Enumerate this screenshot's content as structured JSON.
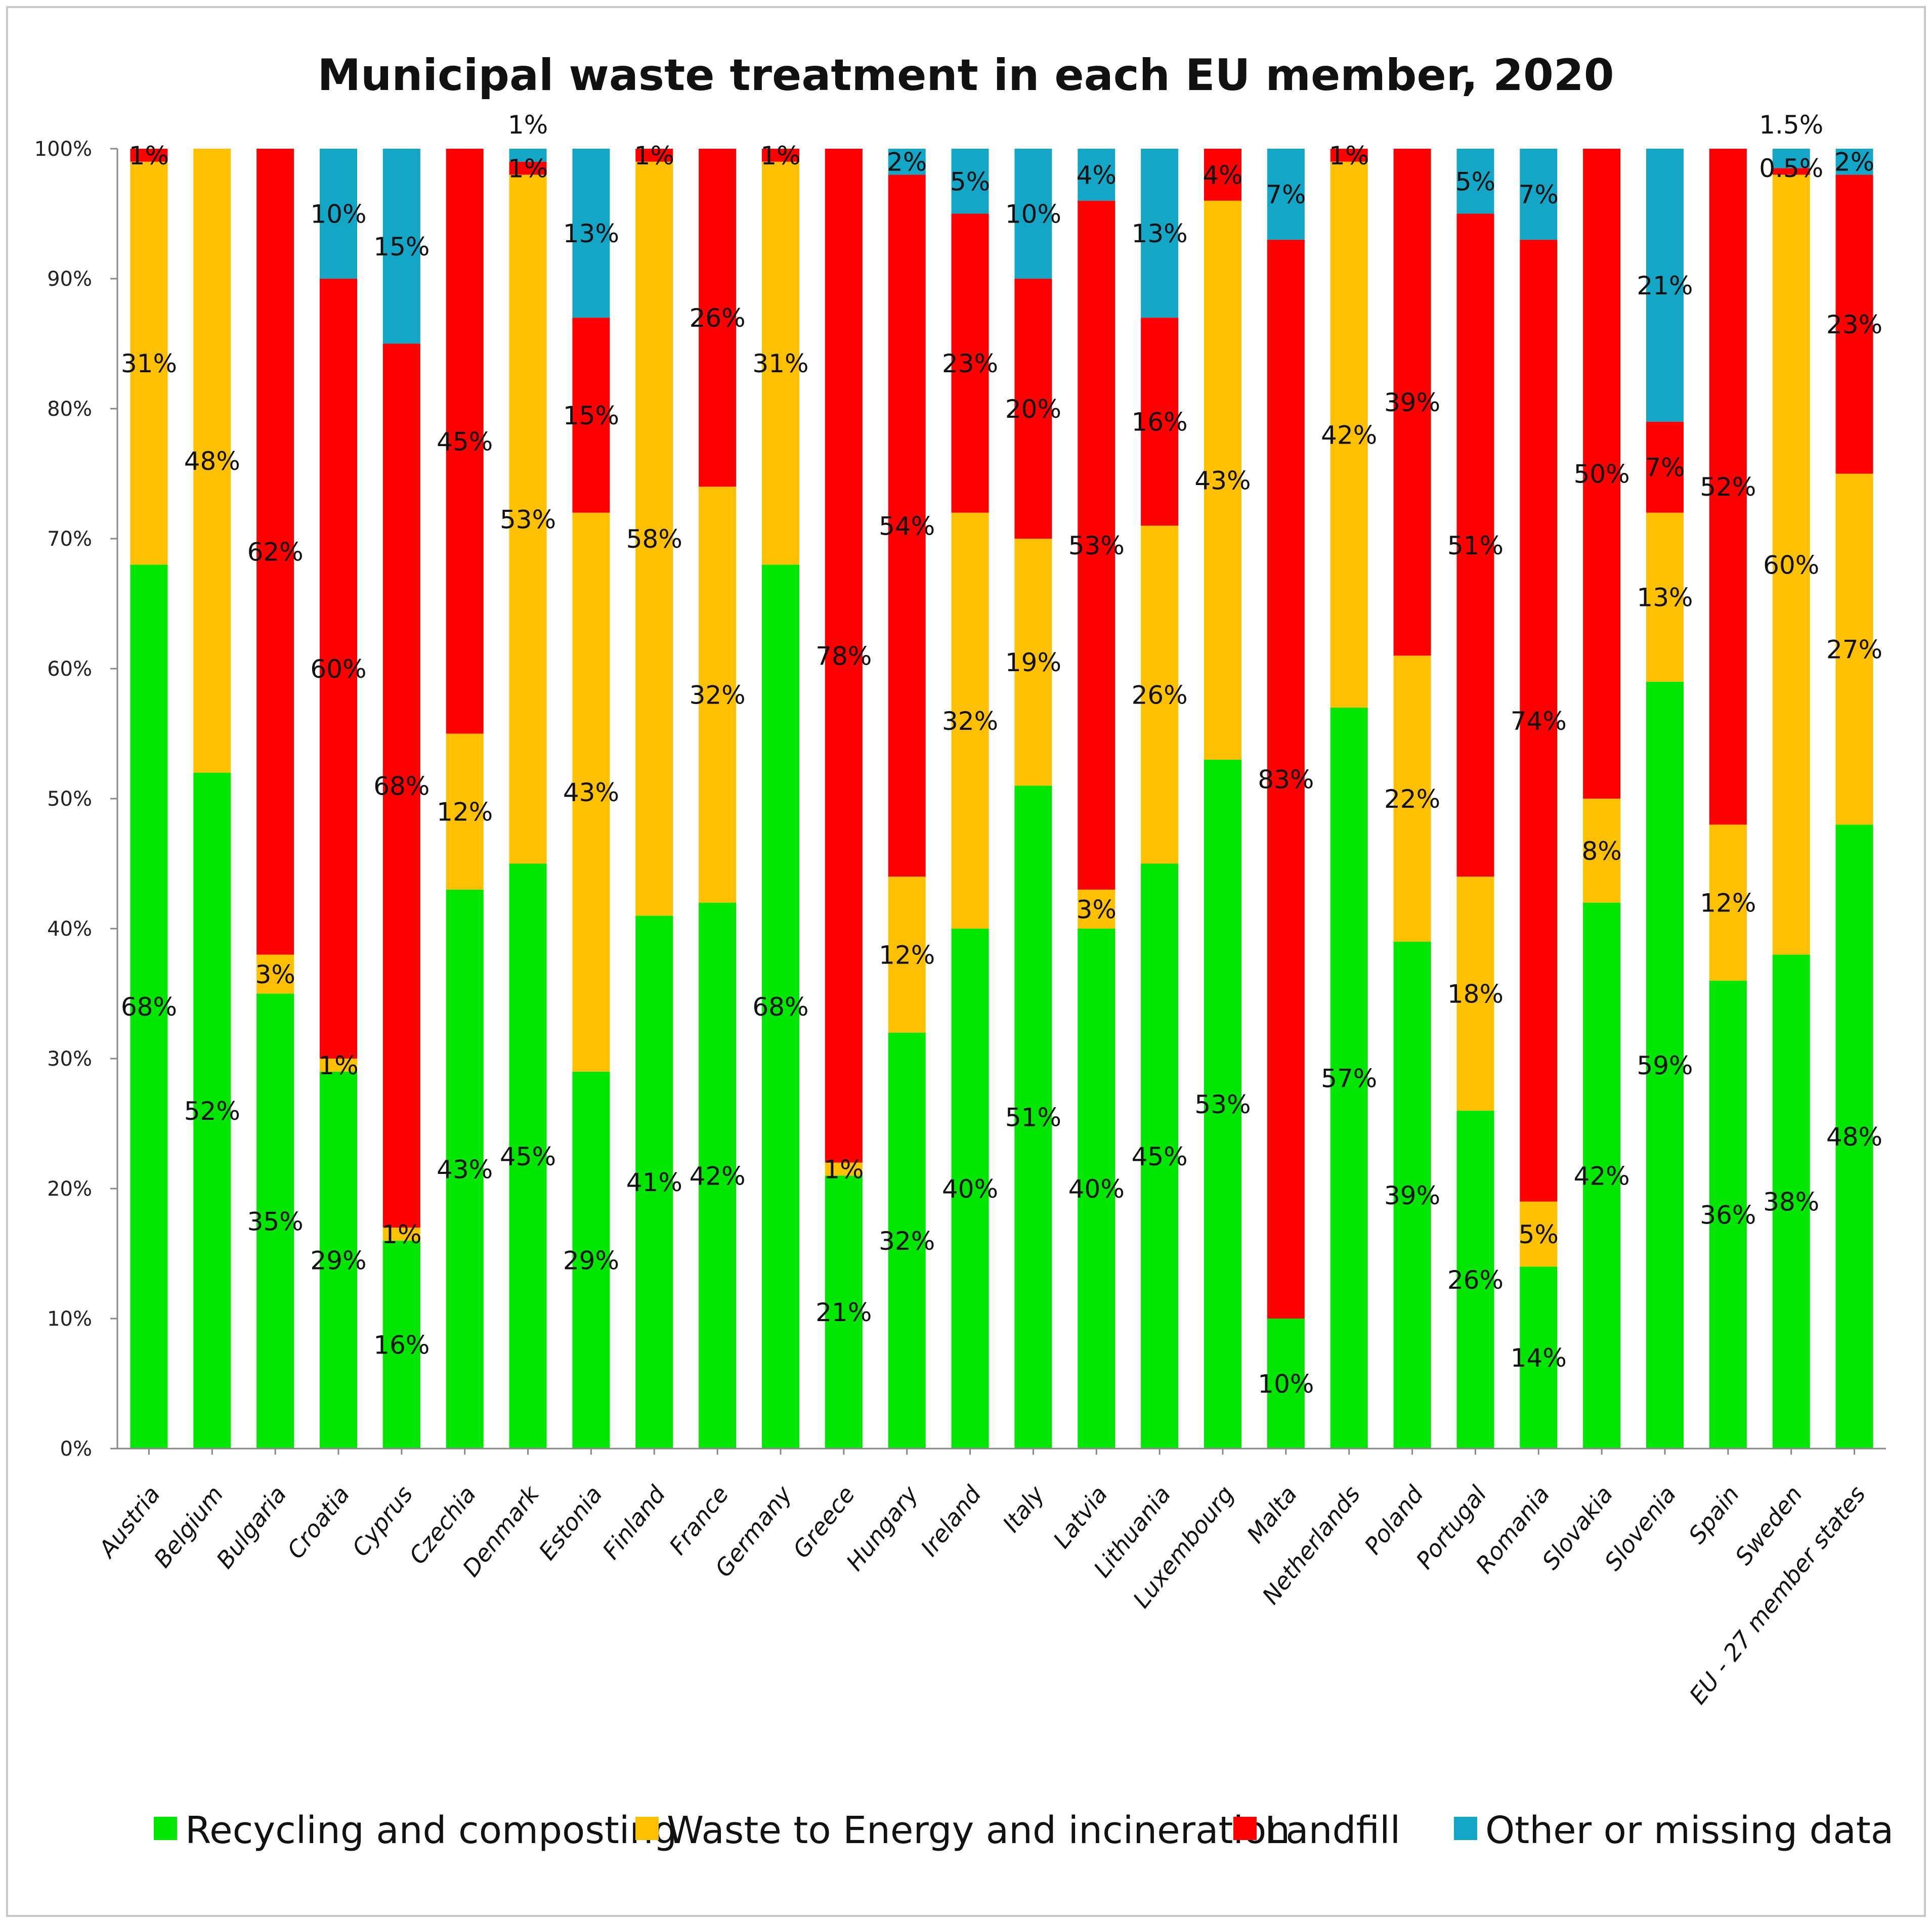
{
  "chart_data": {
    "type": "bar",
    "stacked": true,
    "title": "Municipal waste treatment in each EU member, 2020",
    "xlabel": "",
    "ylabel": "",
    "ylim": [
      0,
      100
    ],
    "yticks": [
      "0%",
      "10%",
      "20%",
      "30%",
      "40%",
      "50%",
      "60%",
      "70%",
      "80%",
      "90%",
      "100%"
    ],
    "grid": false,
    "legend_position": "bottom",
    "categories": [
      "Austria",
      "Belgium",
      "Bulgaria",
      "Croatia",
      "Cyprus",
      "Czechia",
      "Denmark",
      "Estonia",
      "Finland",
      "France",
      "Germany",
      "Greece",
      "Hungary",
      "Ireland",
      "Italy",
      "Latvia",
      "Lithuania",
      "Luxembourg",
      "Malta",
      "Netherlands",
      "Poland",
      "Portugal",
      "Romania",
      "Slovakia",
      "Slovenia",
      "Spain",
      "Sweden",
      "EU - 27 member states"
    ],
    "series": [
      {
        "name": "Recycling and composting",
        "color": "#00e600",
        "values": [
          68,
          52,
          35,
          29,
          16,
          43,
          45,
          29,
          41,
          42,
          68,
          21,
          32,
          40,
          51,
          40,
          45,
          53,
          10,
          57,
          39,
          26,
          14,
          42,
          59,
          36,
          38,
          48
        ],
        "labels": [
          "68%",
          "52%",
          "35%",
          "29%",
          "16%",
          "43%",
          "45%",
          "29%",
          "41%",
          "42%",
          "68%",
          "21%",
          "32%",
          "40%",
          "51%",
          "40%",
          "45%",
          "53%",
          "10%",
          "57%",
          "39%",
          "26%",
          "14%",
          "42%",
          "59%",
          "36%",
          "38%",
          "48%"
        ]
      },
      {
        "name": "Waste to Energy and incineration",
        "color": "#ffc000",
        "values": [
          31,
          48,
          3,
          1,
          1,
          12,
          53,
          43,
          58,
          32,
          31,
          1,
          12,
          32,
          19,
          3,
          26,
          43,
          0,
          42,
          22,
          18,
          5,
          8,
          13,
          12,
          60,
          27
        ],
        "labels": [
          "31%",
          "48%",
          "3%",
          "1%",
          "1%",
          "12%",
          "53%",
          "43%",
          "58%",
          "32%",
          "31%",
          "1%",
          "12%",
          "32%",
          "19%",
          "3%",
          "26%",
          "43%",
          "",
          "42%",
          "22%",
          "18%",
          "5%",
          "8%",
          "13%",
          "12%",
          "60%",
          "27%"
        ]
      },
      {
        "name": "Landfill",
        "color": "#ff0000",
        "values": [
          1,
          0,
          62,
          60,
          68,
          45,
          1,
          15,
          1,
          26,
          1,
          78,
          54,
          23,
          20,
          53,
          16,
          4,
          83,
          1,
          39,
          51,
          74,
          50,
          7,
          52,
          0.5,
          23
        ],
        "labels": [
          "1%",
          "",
          "62%",
          "60%",
          "68%",
          "45%",
          "1%",
          "15%",
          "1%",
          "26%",
          "1%",
          "78%",
          "54%",
          "23%",
          "20%",
          "53%",
          "16%",
          "4%",
          "83%",
          "1%",
          "39%",
          "51%",
          "74%",
          "50%",
          "7%",
          "52%",
          "0.5%",
          "23%"
        ]
      },
      {
        "name": "Other or missing data",
        "color": "#13a6c6",
        "values": [
          0,
          0,
          0,
          10,
          15,
          0,
          1,
          13,
          0,
          0,
          0,
          0,
          2,
          5,
          10,
          4,
          13,
          0,
          7,
          0,
          0,
          5,
          7,
          0,
          21,
          0,
          1.5,
          2
        ],
        "labels": [
          "",
          "",
          "",
          "10%",
          "15%",
          "",
          "1%",
          "13%",
          "",
          "",
          "",
          "",
          "2%",
          "5%",
          "10%",
          "4%",
          "13%",
          "",
          "7%",
          "",
          "",
          "5%",
          "7%",
          "",
          "21%",
          "",
          "1.5%",
          "2%"
        ]
      }
    ]
  }
}
